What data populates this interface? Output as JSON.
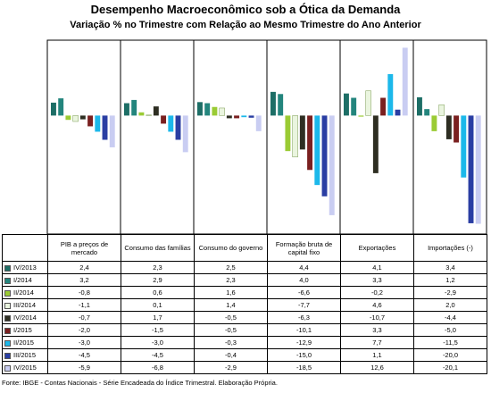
{
  "chart_data": {
    "type": "bar",
    "title": "Desempenho Macroeconômico sob a Ótica da Demanda",
    "subtitle": "Variação % no Trimestre com Relação ao Mesmo Trimestre do Ano Anterior",
    "categories": [
      "PIB a preços de mercado",
      "Consumo das famílias",
      "Consumo do governo",
      "Formação bruta de capital fixo",
      "Exportações",
      "Importações (-)"
    ],
    "series": [
      {
        "name": "IV/2013",
        "color": "#1d6e66",
        "values": [
          2.4,
          2.3,
          2.5,
          4.4,
          4.1,
          3.4
        ],
        "value_labels": [
          "2,4",
          "2,3",
          "2,5",
          "4,4",
          "4,1",
          "3,4"
        ]
      },
      {
        "name": "I/2014",
        "color": "#23857d",
        "values": [
          3.2,
          2.9,
          2.3,
          4.0,
          3.3,
          1.2
        ],
        "value_labels": [
          "3,2",
          "2,9",
          "2,3",
          "4,0",
          "3,3",
          "1,2"
        ]
      },
      {
        "name": "II/2014",
        "color": "#9acb34",
        "values": [
          -0.8,
          0.6,
          1.6,
          -6.6,
          -0.2,
          -2.9
        ],
        "value_labels": [
          "-0,8",
          "0,6",
          "1,6",
          "-6,6",
          "-0,2",
          "-2,9"
        ]
      },
      {
        "name": "III/2014",
        "color": "#eaf5df",
        "values": [
          -1.1,
          0.1,
          1.4,
          -7.7,
          4.6,
          2.0
        ],
        "value_labels": [
          "-1,1",
          "0,1",
          "1,4",
          "-7,7",
          "4,6",
          "2,0"
        ]
      },
      {
        "name": "IV/2014",
        "color": "#2e2e22",
        "values": [
          -0.7,
          1.7,
          -0.5,
          -6.3,
          -10.7,
          -4.4
        ],
        "value_labels": [
          "-0,7",
          "1,7",
          "-0,5",
          "-6,3",
          "-10,7",
          "-4,4"
        ]
      },
      {
        "name": "I/2015",
        "color": "#7a2020",
        "values": [
          -2.0,
          -1.5,
          -0.5,
          -10.1,
          3.3,
          -5.0
        ],
        "value_labels": [
          "-2,0",
          "-1,5",
          "-0,5",
          "-10,1",
          "3,3",
          "-5,0"
        ]
      },
      {
        "name": "II/2015",
        "color": "#1cb8ea",
        "values": [
          -3.0,
          -3.0,
          -0.3,
          -12.9,
          7.7,
          -11.5
        ],
        "value_labels": [
          "-3,0",
          "-3,0",
          "-0,3",
          "-12,9",
          "7,7",
          "-11,5"
        ]
      },
      {
        "name": "III/2015",
        "color": "#2a3ea3",
        "values": [
          -4.5,
          -4.5,
          -0.4,
          -15.0,
          1.1,
          -20.0
        ],
        "value_labels": [
          "-4,5",
          "-4,5",
          "-0,4",
          "-15,0",
          "1,1",
          "-20,0"
        ]
      },
      {
        "name": "IV/2015",
        "color": "#c9cdf2",
        "values": [
          -5.9,
          -6.8,
          -2.9,
          -18.5,
          12.6,
          -20.1
        ],
        "value_labels": [
          "-5,9",
          "-6,8",
          "-2,9",
          "-18,5",
          "12,6",
          "-20,1"
        ]
      }
    ],
    "ylim": [
      -22,
      14
    ],
    "source": "Fonte: IBGE - Contas Nacionais - Série Encadeada do Índice Trimestral. Elaboração Própria."
  }
}
